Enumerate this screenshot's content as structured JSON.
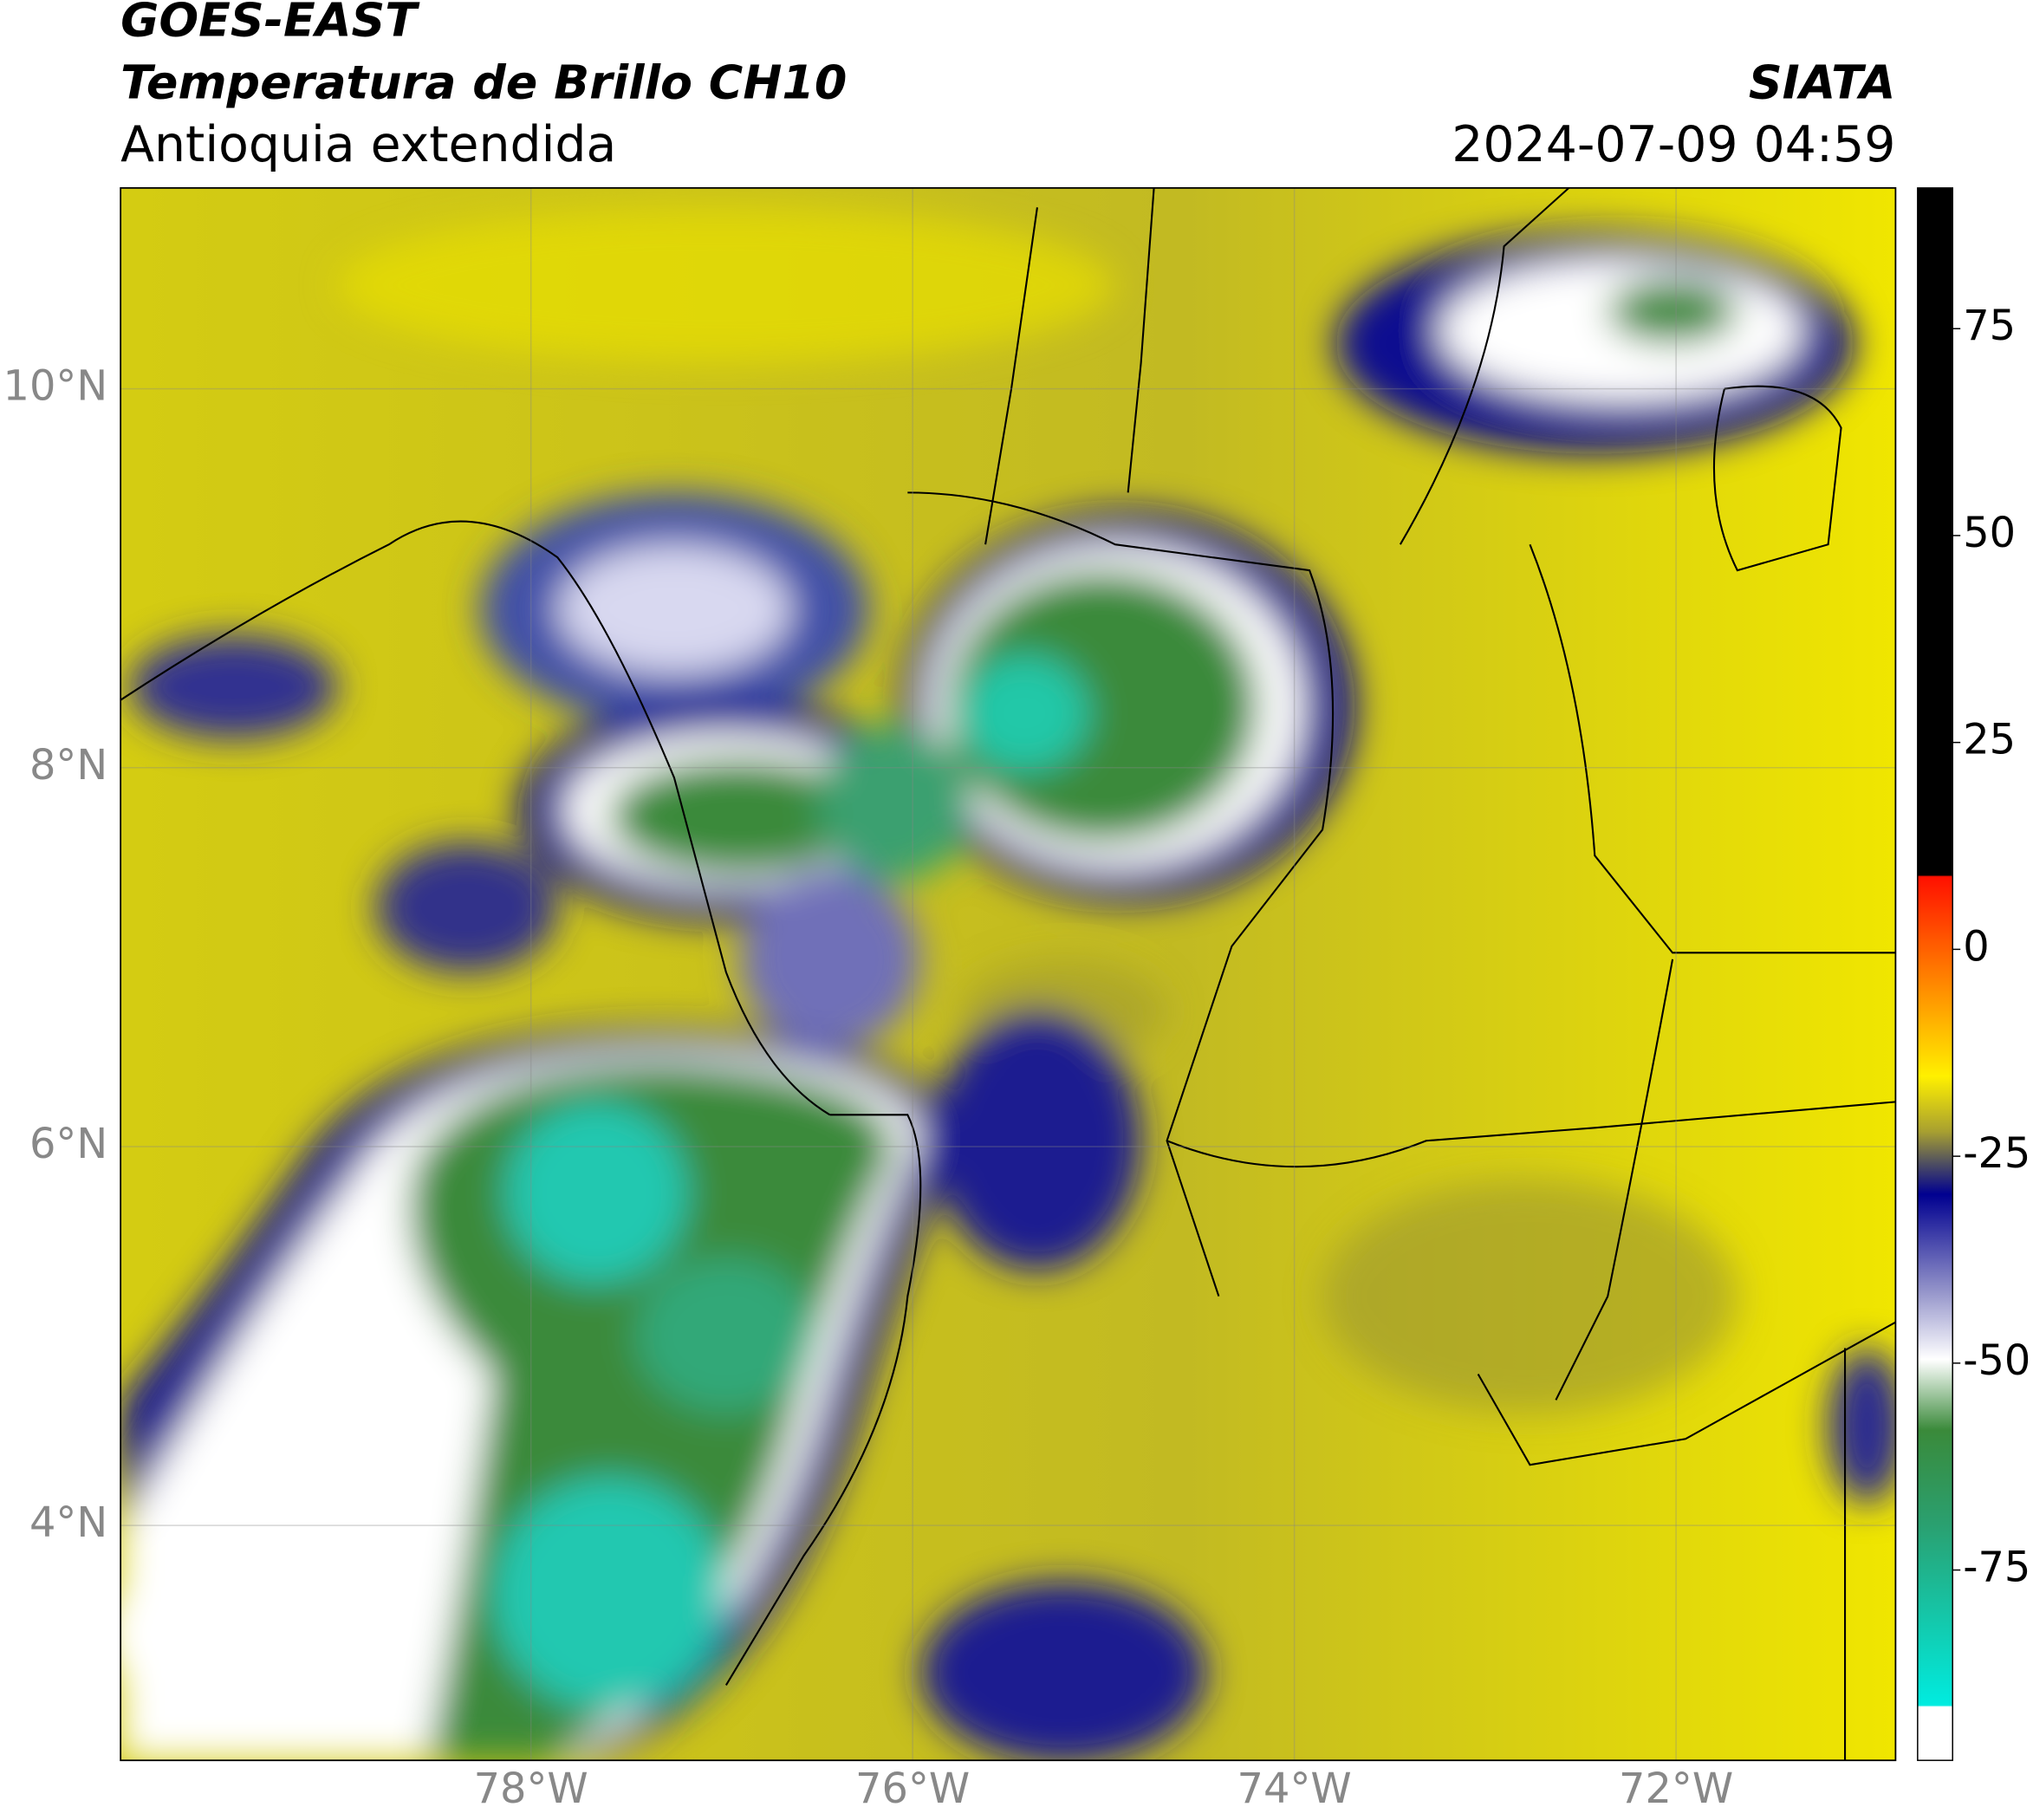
{
  "header": {
    "title": "GOES-EAST",
    "subtitle": "Temperatura de Brillo CH10",
    "region": "Antioquia extendida",
    "source": "SIATA",
    "datetime": "2024-07-09 04:59"
  },
  "map": {
    "lonlim": [
      -80.15,
      -70.85
    ],
    "latlim": [
      2.76,
      11.06
    ],
    "lonticks": [
      {
        "value": -78,
        "label": "78°W"
      },
      {
        "value": -76,
        "label": "76°W"
      },
      {
        "value": -74,
        "label": "74°W"
      },
      {
        "value": -72,
        "label": "72°W"
      }
    ],
    "latticks": [
      {
        "value": 10,
        "label": "10°N"
      },
      {
        "value": 8,
        "label": "8°N"
      },
      {
        "value": 6,
        "label": "6°N"
      },
      {
        "value": 4,
        "label": "4°N"
      }
    ],
    "grid": true
  },
  "colorbar": {
    "lim": [
      -98,
      92
    ],
    "ticks": [
      75,
      50,
      25,
      0,
      -25,
      -50,
      -75
    ]
  }
}
